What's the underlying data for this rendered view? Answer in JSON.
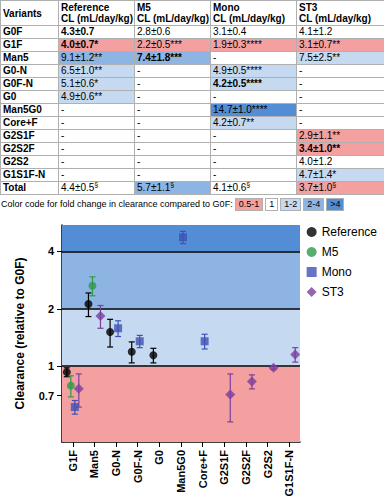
{
  "table": {
    "header": [
      "Variants",
      "Reference\nCL (mL/day/kg)",
      "M5\nCL (mL/day/kg)",
      "Mono\nCL (mL/day/kg)",
      "ST3\nCL (mL/day/kg)"
    ],
    "rows": [
      [
        {
          "text": "G0F"
        },
        {
          "text": "4.3±0.7",
          "bold": true
        },
        {
          "text": "2.8±0.6"
        },
        {
          "text": "3.1±0.4"
        },
        {
          "text": "4.1±1.2"
        }
      ],
      [
        {
          "text": "G1F"
        },
        {
          "text": "4.0±0.7*",
          "bold": true,
          "color": "#f4a0a0"
        },
        {
          "text": "2.2±0.5***",
          "color": "#f4a0a0"
        },
        {
          "text": "1.9±0.3****",
          "color": "#f4a0a0"
        },
        {
          "text": "3.1±0.7**",
          "color": "#f4a0a0"
        }
      ],
      [
        {
          "text": "Man5"
        },
        {
          "text": "9.1±1.2**",
          "color": "#8db4e2"
        },
        {
          "text": "7.4±1.8***",
          "bold": true,
          "color": "#8db4e2"
        },
        {
          "text": "-"
        },
        {
          "text": "7.5±2.5**",
          "color": "#c5d9f1"
        }
      ],
      [
        {
          "text": "G0-N"
        },
        {
          "text": "6.5±1.0**",
          "color": "#c5d9f1"
        },
        {
          "text": "-"
        },
        {
          "text": "4.9±0.5****",
          "color": "#c5d9f1"
        },
        {
          "text": "-"
        }
      ],
      [
        {
          "text": "G0F-N"
        },
        {
          "text": "5.1±0.6*",
          "color": "#c5d9f1"
        },
        {
          "text": "-"
        },
        {
          "text": "4.2±0.5****",
          "bold": true,
          "color": "#c5d9f1"
        },
        {
          "text": "-"
        }
      ],
      [
        {
          "text": "G0"
        },
        {
          "text": "4.9±0.6**",
          "color": "#c5d9f1"
        },
        {
          "text": "-"
        },
        {
          "text": "-"
        },
        {
          "text": "-"
        }
      ],
      [
        {
          "text": "Man5G0"
        },
        {
          "text": "-"
        },
        {
          "text": "-"
        },
        {
          "text": "14.7±1.0****",
          "color": "#538dd5"
        },
        {
          "text": "-"
        }
      ],
      [
        {
          "text": "Core+F"
        },
        {
          "text": "-"
        },
        {
          "text": "-"
        },
        {
          "text": "4.2±0.7**",
          "color": "#c5d9f1"
        },
        {
          "text": "-"
        }
      ],
      [
        {
          "text": "G2S1F"
        },
        {
          "text": "-"
        },
        {
          "text": "-"
        },
        {
          "text": "-"
        },
        {
          "text": "2.9±1.1**",
          "color": "#f4a0a0"
        }
      ],
      [
        {
          "text": "G2S2F"
        },
        {
          "text": "-"
        },
        {
          "text": "-"
        },
        {
          "text": "-"
        },
        {
          "text": "3.4±1.0**",
          "bold": true,
          "color": "#f4a0a0"
        }
      ],
      [
        {
          "text": "G2S2"
        },
        {
          "text": "-"
        },
        {
          "text": "-"
        },
        {
          "text": "-"
        },
        {
          "text": "4.0±1.2"
        }
      ],
      [
        {
          "text": "G1S1F-N"
        },
        {
          "text": "-"
        },
        {
          "text": "-"
        },
        {
          "text": "-"
        },
        {
          "text": "4.7±1.4*",
          "color": "#c5d9f1"
        }
      ],
      [
        {
          "text": "Total"
        },
        {
          "text": "4.4±0.5",
          "sup": "§"
        },
        {
          "text": "5.7±1.1",
          "sup": "§",
          "color": "#8db4e2"
        },
        {
          "text": "4.1±0.6",
          "sup": "§"
        },
        {
          "text": "3.7±1.0",
          "sup": "§",
          "color": "#f4a0a0"
        }
      ]
    ]
  },
  "color_code": {
    "title": "Color code for fold change in clearance compared to G0F:",
    "items": [
      {
        "label": "0.5-1",
        "color": "#f4a0a0"
      },
      {
        "label": "1",
        "color": "#ffffff"
      },
      {
        "label": "1-2",
        "color": "#c5d9f1"
      },
      {
        "label": "2-4",
        "color": "#8db4e2"
      },
      {
        "label": ">4",
        "color": "#538dd5"
      }
    ]
  },
  "chart_data": {
    "type": "scatter",
    "y_label": "Clearance (relative to G0F)",
    "categories": [
      "G1F",
      "Man5",
      "G0-N",
      "G0F-N",
      "G0",
      "Man5G0",
      "Core+F",
      "G2S1F",
      "G2S2F",
      "G2S2",
      "G1S1F-N"
    ],
    "series": [
      {
        "name": "Reference",
        "color": "#000000",
        "marker": "circle",
        "values": [
          0.93,
          2.12,
          1.51,
          1.19,
          1.14,
          null,
          null,
          null,
          null,
          null,
          null
        ],
        "errors": [
          0.05,
          0.3,
          0.25,
          0.15,
          0.1,
          null,
          null,
          null,
          null,
          null,
          null
        ]
      },
      {
        "name": "M5",
        "color": "#2e9a48",
        "marker": "circle",
        "values": [
          0.79,
          2.64,
          null,
          null,
          null,
          null,
          null,
          null,
          null,
          null,
          null
        ],
        "errors": [
          0.1,
          0.3,
          null,
          null,
          null,
          null,
          null,
          null,
          null,
          null,
          null
        ]
      },
      {
        "name": "Mono",
        "color": "#3f51b5",
        "marker": "square",
        "values": [
          0.61,
          null,
          1.58,
          1.35,
          null,
          4.74,
          1.35,
          null,
          null,
          null,
          null
        ],
        "errors": [
          0.05,
          null,
          0.15,
          0.1,
          null,
          0.35,
          0.12,
          null,
          null,
          null,
          null
        ]
      },
      {
        "name": "ST3",
        "color": "#7b3f9e",
        "marker": "diamond",
        "values": [
          0.76,
          1.83,
          null,
          null,
          null,
          null,
          null,
          0.71,
          0.83,
          0.98,
          1.15
        ],
        "errors": [
          0.15,
          0.25,
          null,
          null,
          null,
          null,
          null,
          0.2,
          0.07,
          0.02,
          0.1
        ]
      }
    ],
    "log": "y",
    "ylim": [
      0.4,
      5.5
    ],
    "yticks": [
      0.7,
      1,
      2,
      4
    ],
    "bands": [
      {
        "from": 0.4,
        "to": 1,
        "color": "#f4a0a0"
      },
      {
        "from": 1,
        "to": 2,
        "color": "#c5d9f1"
      },
      {
        "from": 2,
        "to": 4,
        "color": "#8db4e2"
      },
      {
        "from": 4,
        "to": 5.5,
        "color": "#538dd5"
      }
    ],
    "legend": "right"
  }
}
